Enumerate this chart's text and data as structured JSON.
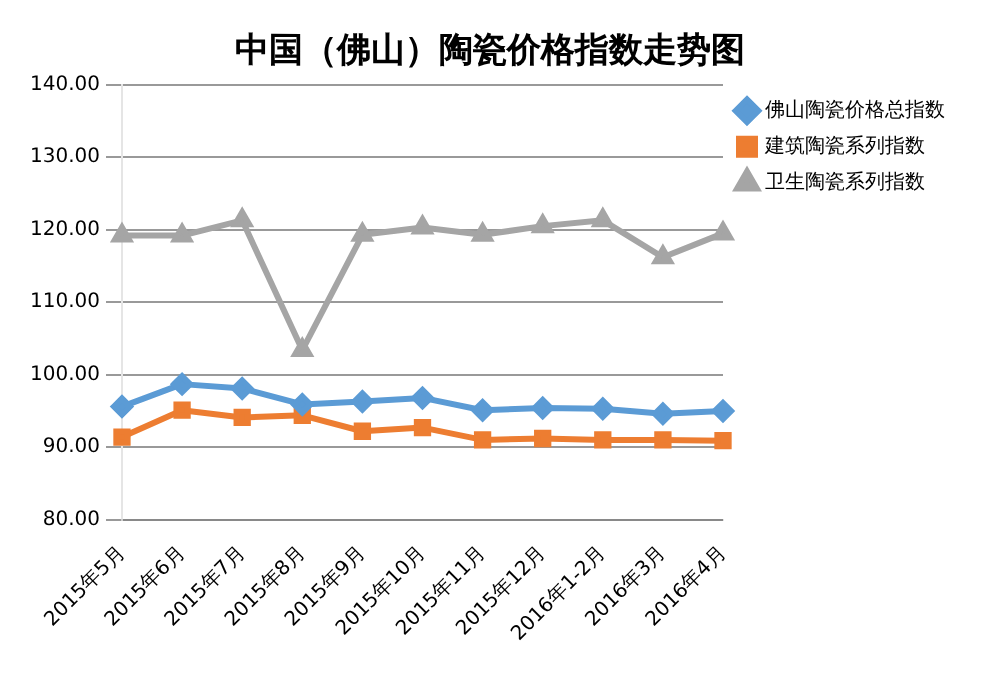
{
  "chart_data": {
    "type": "line",
    "title": "中国（佛山）陶瓷价格指数走势图",
    "categories": [
      "2015年5月",
      "2015年6月",
      "2015年7月",
      "2015年8月",
      "2015年9月",
      "2015年10月",
      "2015年11月",
      "2015年12月",
      "2016年1-2月",
      "2016年3月",
      "2016年4月"
    ],
    "series": [
      {
        "name": "佛山陶瓷价格总指数",
        "color": "#5b9bd5",
        "marker": "diamond",
        "values": [
          95.6,
          98.7,
          98.1,
          95.9,
          96.3,
          96.8,
          95.1,
          95.4,
          95.3,
          94.6,
          95.0
        ]
      },
      {
        "name": "建筑陶瓷系列指数",
        "color": "#ed7d31",
        "marker": "square",
        "values": [
          91.4,
          95.1,
          94.1,
          94.4,
          92.2,
          92.7,
          91.0,
          91.2,
          91.0,
          91.0,
          90.9
        ]
      },
      {
        "name": "卫生陶瓷系列指数",
        "color": "#a5a5a5",
        "marker": "triangle",
        "values": [
          119.2,
          119.2,
          121.3,
          103.4,
          119.3,
          120.3,
          119.3,
          120.5,
          121.3,
          116.2,
          119.5
        ]
      }
    ],
    "ylim": [
      80,
      140
    ],
    "yticks": [
      {
        "value": 80,
        "label": "80.00"
      },
      {
        "value": 90,
        "label": "90.00"
      },
      {
        "value": 100,
        "label": "100.00"
      },
      {
        "value": 110,
        "label": "110.00"
      },
      {
        "value": 120,
        "label": "120.00"
      },
      {
        "value": 130,
        "label": "130.00"
      },
      {
        "value": 140,
        "label": "140.00"
      }
    ],
    "grid": "y",
    "legend": "right"
  }
}
